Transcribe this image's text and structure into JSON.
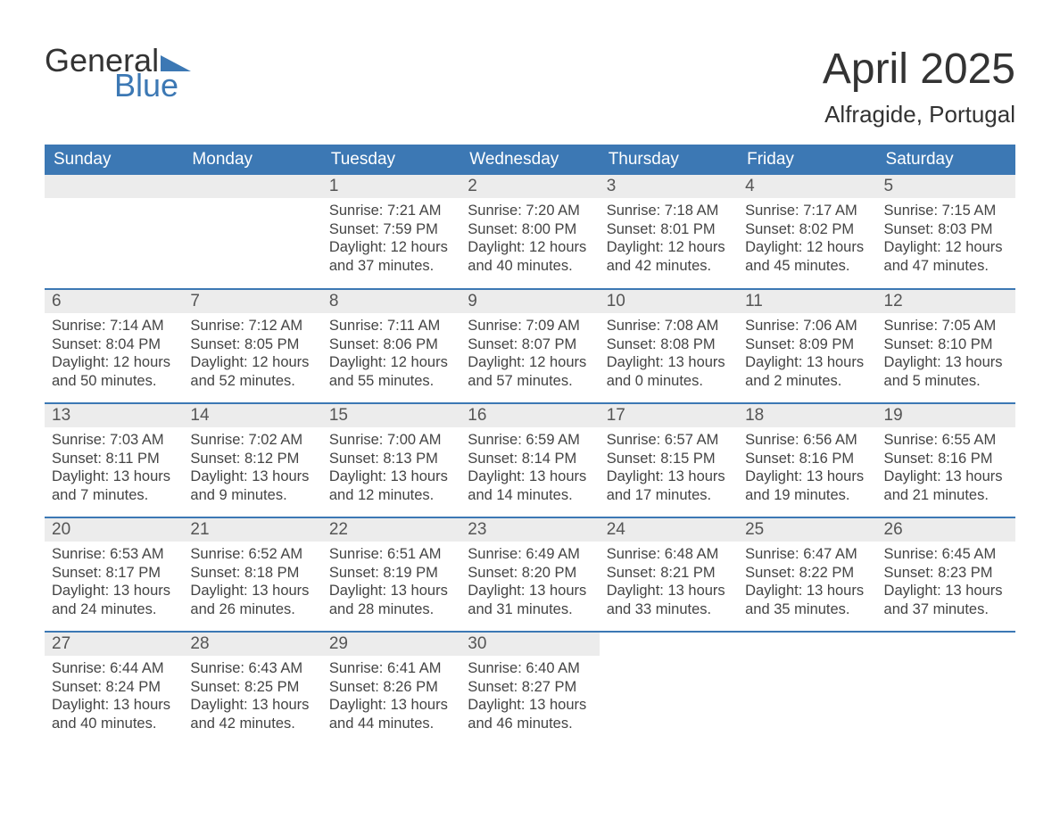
{
  "logo": {
    "text_general": "General",
    "text_blue": "Blue",
    "flag_color": "#3c78b4"
  },
  "title": "April 2025",
  "location": "Alfragide, Portugal",
  "colors": {
    "header_bg": "#3c78b4",
    "header_text": "#ffffff",
    "daynum_bg": "#ececec",
    "row_divider": "#3c78b4",
    "body_text": "#444444"
  },
  "weekdays": [
    "Sunday",
    "Monday",
    "Tuesday",
    "Wednesday",
    "Thursday",
    "Friday",
    "Saturday"
  ],
  "weeks": [
    [
      null,
      null,
      {
        "n": "1",
        "sunrise": "Sunrise: 7:21 AM",
        "sunset": "Sunset: 7:59 PM",
        "daylight": "Daylight: 12 hours and 37 minutes."
      },
      {
        "n": "2",
        "sunrise": "Sunrise: 7:20 AM",
        "sunset": "Sunset: 8:00 PM",
        "daylight": "Daylight: 12 hours and 40 minutes."
      },
      {
        "n": "3",
        "sunrise": "Sunrise: 7:18 AM",
        "sunset": "Sunset: 8:01 PM",
        "daylight": "Daylight: 12 hours and 42 minutes."
      },
      {
        "n": "4",
        "sunrise": "Sunrise: 7:17 AM",
        "sunset": "Sunset: 8:02 PM",
        "daylight": "Daylight: 12 hours and 45 minutes."
      },
      {
        "n": "5",
        "sunrise": "Sunrise: 7:15 AM",
        "sunset": "Sunset: 8:03 PM",
        "daylight": "Daylight: 12 hours and 47 minutes."
      }
    ],
    [
      {
        "n": "6",
        "sunrise": "Sunrise: 7:14 AM",
        "sunset": "Sunset: 8:04 PM",
        "daylight": "Daylight: 12 hours and 50 minutes."
      },
      {
        "n": "7",
        "sunrise": "Sunrise: 7:12 AM",
        "sunset": "Sunset: 8:05 PM",
        "daylight": "Daylight: 12 hours and 52 minutes."
      },
      {
        "n": "8",
        "sunrise": "Sunrise: 7:11 AM",
        "sunset": "Sunset: 8:06 PM",
        "daylight": "Daylight: 12 hours and 55 minutes."
      },
      {
        "n": "9",
        "sunrise": "Sunrise: 7:09 AM",
        "sunset": "Sunset: 8:07 PM",
        "daylight": "Daylight: 12 hours and 57 minutes."
      },
      {
        "n": "10",
        "sunrise": "Sunrise: 7:08 AM",
        "sunset": "Sunset: 8:08 PM",
        "daylight": "Daylight: 13 hours and 0 minutes."
      },
      {
        "n": "11",
        "sunrise": "Sunrise: 7:06 AM",
        "sunset": "Sunset: 8:09 PM",
        "daylight": "Daylight: 13 hours and 2 minutes."
      },
      {
        "n": "12",
        "sunrise": "Sunrise: 7:05 AM",
        "sunset": "Sunset: 8:10 PM",
        "daylight": "Daylight: 13 hours and 5 minutes."
      }
    ],
    [
      {
        "n": "13",
        "sunrise": "Sunrise: 7:03 AM",
        "sunset": "Sunset: 8:11 PM",
        "daylight": "Daylight: 13 hours and 7 minutes."
      },
      {
        "n": "14",
        "sunrise": "Sunrise: 7:02 AM",
        "sunset": "Sunset: 8:12 PM",
        "daylight": "Daylight: 13 hours and 9 minutes."
      },
      {
        "n": "15",
        "sunrise": "Sunrise: 7:00 AM",
        "sunset": "Sunset: 8:13 PM",
        "daylight": "Daylight: 13 hours and 12 minutes."
      },
      {
        "n": "16",
        "sunrise": "Sunrise: 6:59 AM",
        "sunset": "Sunset: 8:14 PM",
        "daylight": "Daylight: 13 hours and 14 minutes."
      },
      {
        "n": "17",
        "sunrise": "Sunrise: 6:57 AM",
        "sunset": "Sunset: 8:15 PM",
        "daylight": "Daylight: 13 hours and 17 minutes."
      },
      {
        "n": "18",
        "sunrise": "Sunrise: 6:56 AM",
        "sunset": "Sunset: 8:16 PM",
        "daylight": "Daylight: 13 hours and 19 minutes."
      },
      {
        "n": "19",
        "sunrise": "Sunrise: 6:55 AM",
        "sunset": "Sunset: 8:16 PM",
        "daylight": "Daylight: 13 hours and 21 minutes."
      }
    ],
    [
      {
        "n": "20",
        "sunrise": "Sunrise: 6:53 AM",
        "sunset": "Sunset: 8:17 PM",
        "daylight": "Daylight: 13 hours and 24 minutes."
      },
      {
        "n": "21",
        "sunrise": "Sunrise: 6:52 AM",
        "sunset": "Sunset: 8:18 PM",
        "daylight": "Daylight: 13 hours and 26 minutes."
      },
      {
        "n": "22",
        "sunrise": "Sunrise: 6:51 AM",
        "sunset": "Sunset: 8:19 PM",
        "daylight": "Daylight: 13 hours and 28 minutes."
      },
      {
        "n": "23",
        "sunrise": "Sunrise: 6:49 AM",
        "sunset": "Sunset: 8:20 PM",
        "daylight": "Daylight: 13 hours and 31 minutes."
      },
      {
        "n": "24",
        "sunrise": "Sunrise: 6:48 AM",
        "sunset": "Sunset: 8:21 PM",
        "daylight": "Daylight: 13 hours and 33 minutes."
      },
      {
        "n": "25",
        "sunrise": "Sunrise: 6:47 AM",
        "sunset": "Sunset: 8:22 PM",
        "daylight": "Daylight: 13 hours and 35 minutes."
      },
      {
        "n": "26",
        "sunrise": "Sunrise: 6:45 AM",
        "sunset": "Sunset: 8:23 PM",
        "daylight": "Daylight: 13 hours and 37 minutes."
      }
    ],
    [
      {
        "n": "27",
        "sunrise": "Sunrise: 6:44 AM",
        "sunset": "Sunset: 8:24 PM",
        "daylight": "Daylight: 13 hours and 40 minutes."
      },
      {
        "n": "28",
        "sunrise": "Sunrise: 6:43 AM",
        "sunset": "Sunset: 8:25 PM",
        "daylight": "Daylight: 13 hours and 42 minutes."
      },
      {
        "n": "29",
        "sunrise": "Sunrise: 6:41 AM",
        "sunset": "Sunset: 8:26 PM",
        "daylight": "Daylight: 13 hours and 44 minutes."
      },
      {
        "n": "30",
        "sunrise": "Sunrise: 6:40 AM",
        "sunset": "Sunset: 8:27 PM",
        "daylight": "Daylight: 13 hours and 46 minutes."
      },
      null,
      null,
      null
    ]
  ]
}
